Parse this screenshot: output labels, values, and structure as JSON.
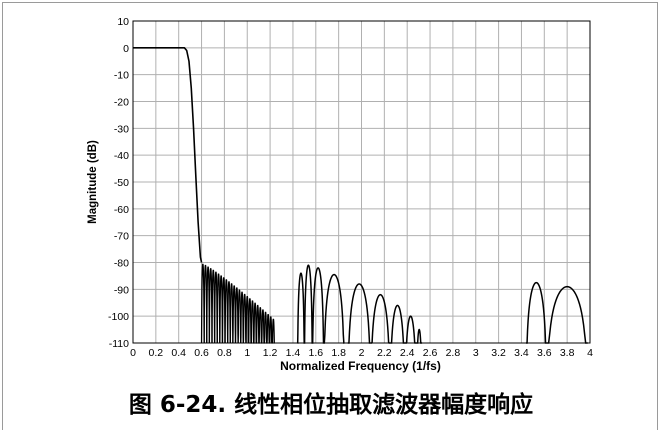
{
  "caption": "图 6-24. 线性相位抽取滤波器幅度响应",
  "chart_data": {
    "type": "line",
    "title": "",
    "xlabel": "Normalized Frequency (1/fs)",
    "ylabel": "Magnitude (dB)",
    "xlim": [
      0,
      4
    ],
    "ylim": [
      -110,
      10
    ],
    "xticks": [
      0,
      0.2,
      0.4,
      0.6,
      0.8,
      1,
      1.2,
      1.4,
      1.6,
      1.8,
      2,
      2.2,
      2.4,
      2.6,
      2.8,
      3,
      3.2,
      3.4,
      3.6,
      3.8,
      4
    ],
    "xtick_labels": [
      "0",
      "0.2",
      "0.4",
      "0.6",
      "0.8",
      "1",
      "1.2",
      "1.4",
      "1.6",
      "1.8",
      "2",
      "2.2",
      "2.4",
      "2.6",
      "2.8",
      "3",
      "3.2",
      "3.4",
      "3.6",
      "3.8",
      "4"
    ],
    "yticks": [
      10,
      0,
      -10,
      -20,
      -30,
      -40,
      -50,
      -60,
      -70,
      -80,
      -90,
      -100,
      -110
    ],
    "ytick_labels": [
      "10",
      "0",
      "-10",
      "-20",
      "-30",
      "-40",
      "-50",
      "-60",
      "-70",
      "-80",
      "-90",
      "-100",
      "-110"
    ],
    "grid": true,
    "line_color": "#000000",
    "grid_color": "#b0b0b0",
    "passband": {
      "x": [
        0,
        0.45
      ],
      "y": 0
    },
    "transition": {
      "x": [
        0,
        0.4,
        0.45,
        0.47,
        0.49,
        0.51,
        0.53,
        0.55,
        0.57,
        0.59,
        0.6
      ],
      "y": [
        0,
        0,
        0,
        -1,
        -5,
        -15,
        -30,
        -48,
        -65,
        -78,
        -80
      ]
    },
    "lobe_cluster": {
      "x_start": 0.6,
      "x_end": 1.24,
      "count": 28,
      "peak_start": -80.5,
      "peak_end": -101
    },
    "lobes": [
      {
        "x0": 1.44,
        "x1": 1.5,
        "peak": -84
      },
      {
        "x0": 1.5,
        "x1": 1.57,
        "peak": -81
      },
      {
        "x0": 1.57,
        "x1": 1.67,
        "peak": -82
      },
      {
        "x0": 1.67,
        "x1": 1.85,
        "peak": -84.5
      },
      {
        "x0": 1.88,
        "x1": 2.08,
        "peak": -88
      },
      {
        "x0": 2.08,
        "x1": 2.25,
        "peak": -92
      },
      {
        "x0": 2.25,
        "x1": 2.38,
        "peak": -96
      },
      {
        "x0": 2.38,
        "x1": 2.48,
        "peak": -100
      },
      {
        "x0": 2.48,
        "x1": 2.53,
        "peak": -105
      },
      {
        "x0": 3.44,
        "x1": 3.62,
        "peak": -87.5
      },
      {
        "x0": 3.62,
        "x1": 3.98,
        "peak": -89
      }
    ]
  }
}
